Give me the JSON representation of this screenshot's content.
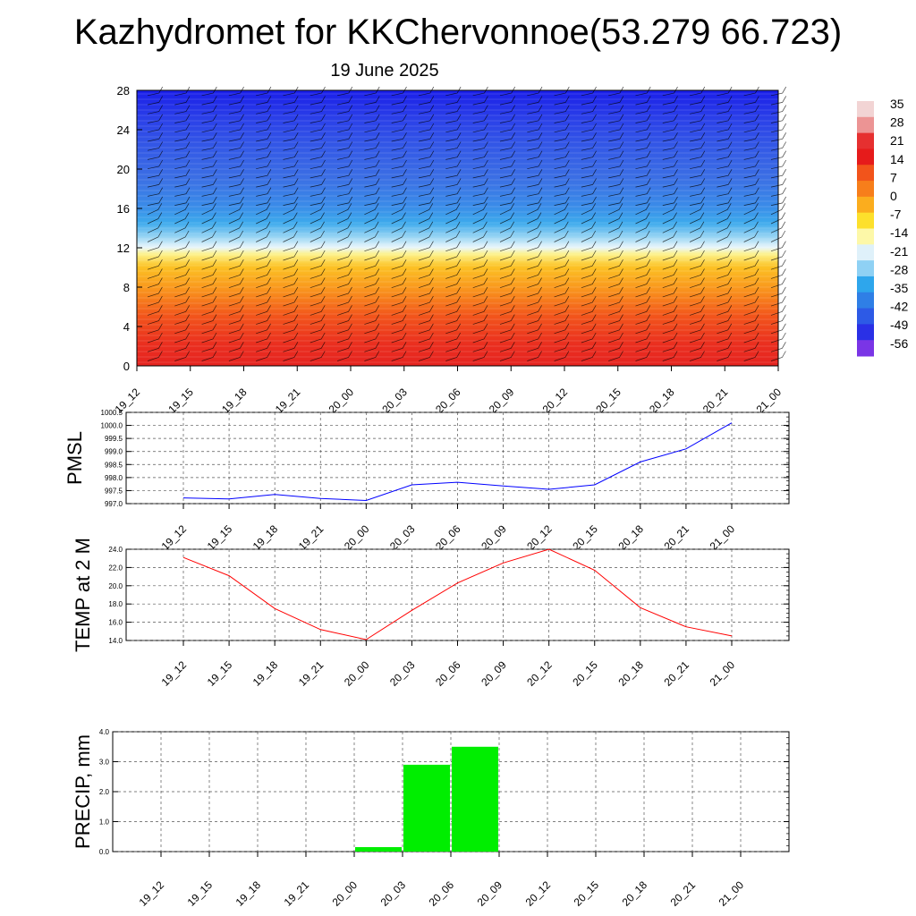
{
  "title": "Kazhydromet for KKChervonnoe(53.279 66.723)",
  "subtitle": "19 June 2025",
  "time_labels": [
    "19_12",
    "19_15",
    "19_18",
    "19_21",
    "20_00",
    "20_03",
    "20_06",
    "20_09",
    "20_12",
    "20_15",
    "20_18",
    "20_21",
    "21_00"
  ],
  "chart_data": [
    {
      "type": "heatmap",
      "description_key": "vertical cross-section temperature with wind barbs",
      "x": [
        "19_12",
        "19_15",
        "19_18",
        "19_21",
        "20_00",
        "20_03",
        "20_06",
        "20_09",
        "20_12",
        "20_15",
        "20_18",
        "20_21",
        "21_00"
      ],
      "y_ticks": [
        0,
        4,
        8,
        12,
        16,
        20,
        24,
        28
      ],
      "ylim": [
        0,
        28
      ],
      "colorbar": {
        "labels": [
          "35",
          "28",
          "21",
          "14",
          "7",
          "0",
          "-7",
          "-14",
          "-21",
          "-28",
          "-35",
          "-42",
          "-49",
          "-56"
        ],
        "colors": [
          "#f2d4d4",
          "#ec9494",
          "#e63030",
          "#e61b1b",
          "#f2541b",
          "#f77e1b",
          "#fbad1e",
          "#fde02c",
          "#fdf8a8",
          "#dff1fa",
          "#8fd1f4",
          "#2ea6ec",
          "#2f7fe6",
          "#2d5ae6",
          "#2a30e6",
          "#7a35e6"
        ]
      }
    },
    {
      "type": "line",
      "ylabel": "PMSL",
      "y_ticks": [
        "1000.5",
        "1000.0",
        "999.5",
        "999.0",
        "998.5",
        "998.0",
        "997.5",
        "997.0"
      ],
      "ylim": [
        997.0,
        1000.5
      ],
      "x": [
        "19_12",
        "19_15",
        "19_18",
        "19_21",
        "20_00",
        "20_03",
        "20_06",
        "20_09",
        "20_12",
        "20_15",
        "20_18",
        "20_21",
        "21_00"
      ],
      "values": [
        997.22,
        997.18,
        997.35,
        997.2,
        997.12,
        997.72,
        997.82,
        997.68,
        997.55,
        997.72,
        998.6,
        999.1,
        1000.1
      ],
      "color": "#0000ff"
    },
    {
      "type": "line",
      "ylabel": "TEMP at 2 M",
      "y_ticks": [
        "24.0",
        "22.0",
        "20.0",
        "18.0",
        "16.0",
        "14.0"
      ],
      "ylim": [
        14.0,
        24.0
      ],
      "x": [
        "19_12",
        "19_15",
        "19_18",
        "19_21",
        "20_00",
        "20_03",
        "20_06",
        "20_09",
        "20_12",
        "20_15",
        "20_18",
        "20_21",
        "21_00"
      ],
      "values": [
        23.1,
        21.1,
        17.5,
        15.2,
        14.1,
        17.3,
        20.3,
        22.5,
        24.0,
        21.7,
        17.6,
        15.5,
        14.5
      ],
      "color": "#ff0000"
    },
    {
      "type": "bar",
      "ylabel": "PRECIP, mm",
      "y_ticks": [
        "4.0",
        "3.0",
        "2.0",
        "1.0",
        "0.0"
      ],
      "ylim": [
        0.0,
        4.0
      ],
      "x": [
        "19_12",
        "19_15",
        "19_18",
        "19_21",
        "20_00",
        "20_03",
        "20_06",
        "20_09",
        "20_12",
        "20_15",
        "20_18",
        "20_21",
        "21_00"
      ],
      "values": [
        0,
        0,
        0,
        0,
        0,
        0.15,
        2.9,
        3.5,
        0,
        0,
        0,
        0,
        0
      ],
      "color": "#00ee00"
    }
  ]
}
